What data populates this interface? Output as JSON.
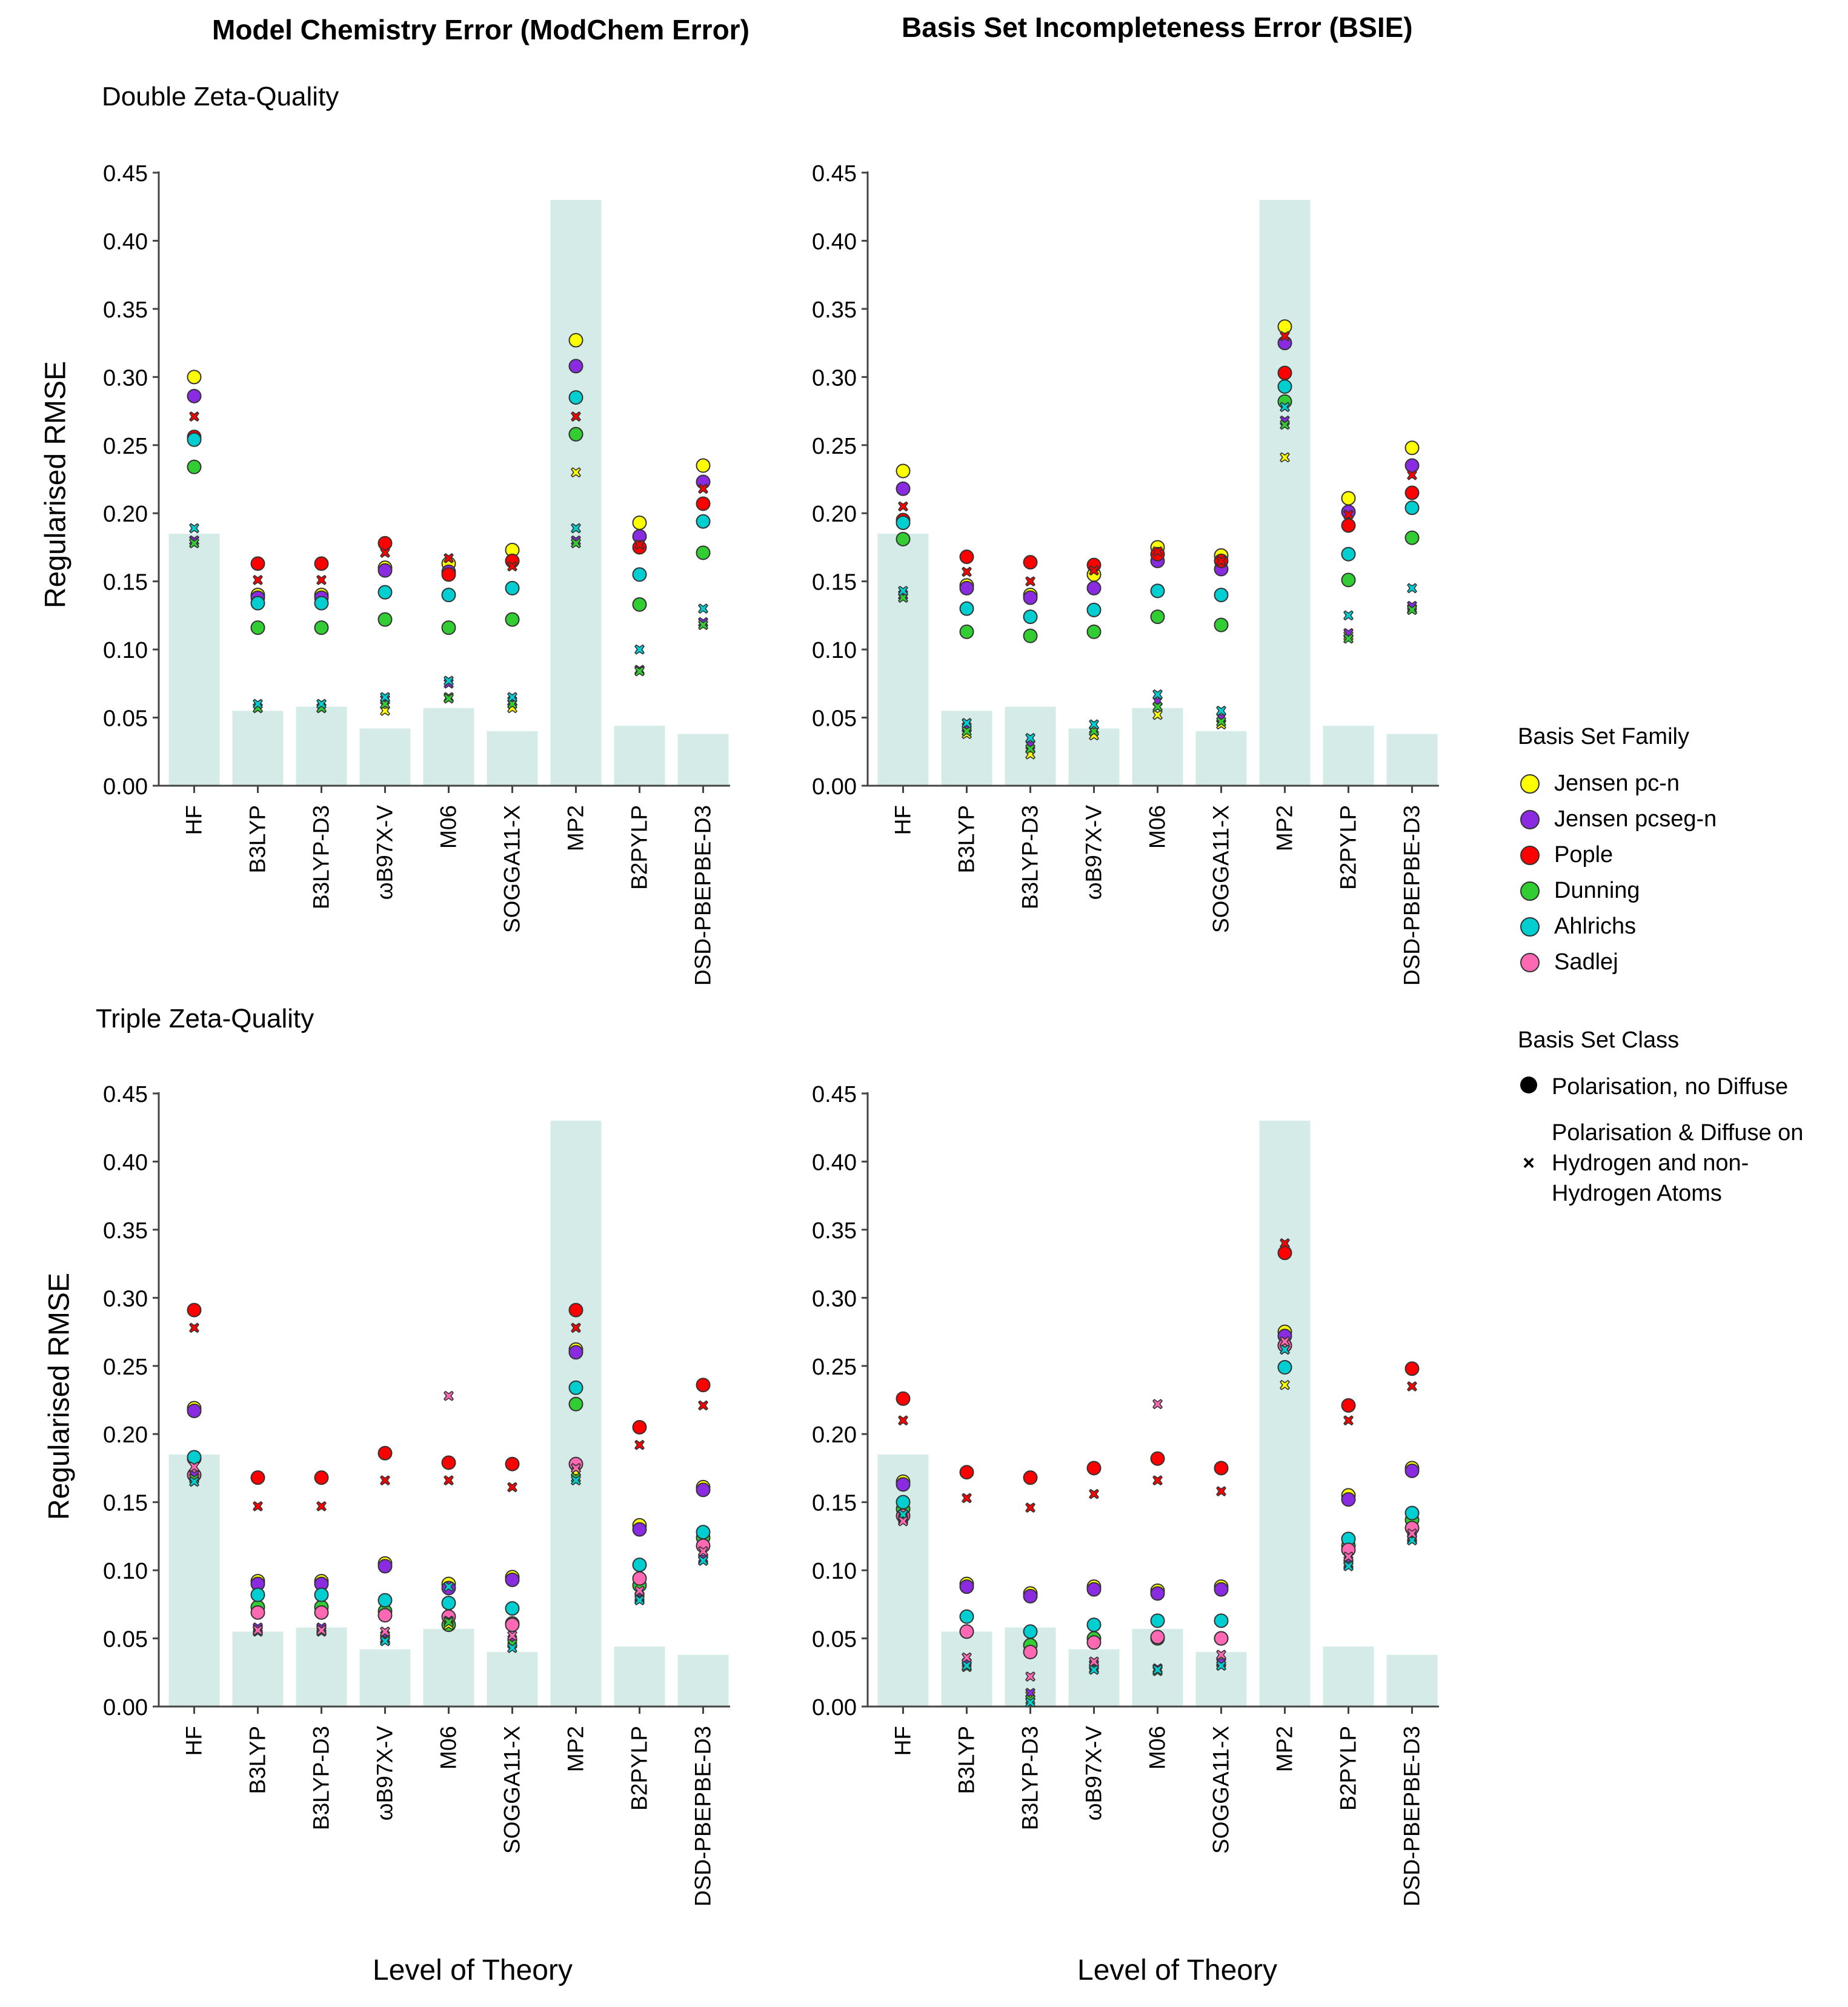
{
  "titles": {
    "modchem": "Model Chemistry Error (ModChem Error)",
    "bsie": "Basis Set Incompleteness Error (BSIE)",
    "double_zeta": "Double Zeta-Quality",
    "triple_zeta": "Triple Zeta-Quality",
    "y_axis": "Regularised RMSE",
    "x_axis": "Level of Theory"
  },
  "legend": {
    "family_title": "Basis Set Family",
    "families": [
      {
        "label": "Jensen pc-n",
        "key": "jensen_pc",
        "color": "#ffff00"
      },
      {
        "label": "Jensen pcseg-n",
        "key": "jensen_pcseg",
        "color": "#8a2be2"
      },
      {
        "label": "Pople",
        "key": "pople",
        "color": "#ff0000"
      },
      {
        "label": "Dunning",
        "key": "dunning",
        "color": "#32cd32"
      },
      {
        "label": "Ahlrichs",
        "key": "ahlrichs",
        "color": "#00ced1"
      },
      {
        "label": "Sadlej",
        "key": "sadlej",
        "color": "#ff69b4"
      }
    ],
    "class_title": "Basis Set Class",
    "classes": [
      {
        "label": "Polarisation, no Diffuse",
        "marker": "circle"
      },
      {
        "label": "Polarisation & Diffuse on Hydrogen and non-Hydrogen Atoms",
        "marker": "×"
      }
    ]
  },
  "chart_data": [
    {
      "type": "scatter",
      "title": "Model Chemistry Error (ModChem Error) - Double Zeta-Quality",
      "xlabel": "",
      "ylabel": "Regularised RMSE",
      "ylim": [
        0,
        0.45
      ],
      "categories": [
        "HF",
        "B3LYP",
        "B3LYP-D3",
        "ωB97X-V",
        "M06",
        "SOGGA11-X",
        "MP2",
        "B2PYLP",
        "DSD-PBEPBE-D3"
      ],
      "yticks": [
        "0.00",
        "0.05",
        "0.10",
        "0.15",
        "0.20",
        "0.25",
        "0.30",
        "0.35",
        "0.40",
        "0.45"
      ],
      "bars": [
        0.185,
        0.055,
        0.058,
        0.042,
        0.057,
        0.04,
        0.43,
        0.044,
        0.038
      ],
      "series": [
        {
          "name": "Jensen pc-n",
          "marker": "circle",
          "values": [
            0.3,
            0.14,
            0.14,
            0.16,
            0.163,
            0.173,
            0.327,
            0.193,
            0.235
          ]
        },
        {
          "name": "Jensen pcseg-n",
          "marker": "circle",
          "values": [
            0.286,
            0.138,
            0.138,
            0.158,
            0.157,
            0.165,
            0.308,
            0.183,
            0.223
          ]
        },
        {
          "name": "Pople",
          "marker": "circle",
          "values": [
            0.256,
            0.163,
            0.163,
            0.178,
            0.155,
            0.165,
            0.258,
            0.175,
            0.207
          ]
        },
        {
          "name": "Dunning",
          "marker": "circle",
          "values": [
            0.234,
            0.116,
            0.116,
            0.122,
            0.116,
            0.122,
            0.258,
            0.133,
            0.171
          ]
        },
        {
          "name": "Ahlrichs",
          "marker": "circle",
          "values": [
            0.254,
            0.134,
            0.134,
            0.142,
            0.14,
            0.145,
            0.285,
            0.155,
            0.194
          ]
        },
        {
          "name": "Jensen pc-n",
          "marker": "x",
          "values": [
            0.18,
            0.057,
            0.057,
            0.055,
            0.065,
            0.057,
            0.23,
            0.085,
            0.12
          ]
        },
        {
          "name": "Jensen pcseg-n",
          "marker": "x",
          "values": [
            0.18,
            0.057,
            0.057,
            0.063,
            0.075,
            0.062,
            0.18,
            0.085,
            0.12
          ]
        },
        {
          "name": "Pople",
          "marker": "x",
          "values": [
            0.271,
            0.151,
            0.151,
            0.171,
            0.167,
            0.161,
            0.271,
            0.177,
            0.218
          ]
        },
        {
          "name": "Dunning",
          "marker": "x",
          "values": [
            0.178,
            0.057,
            0.057,
            0.06,
            0.064,
            0.06,
            0.178,
            0.084,
            0.118
          ]
        },
        {
          "name": "Ahlrichs",
          "marker": "x",
          "values": [
            0.189,
            0.06,
            0.06,
            0.065,
            0.077,
            0.065,
            0.189,
            0.1,
            0.13
          ]
        }
      ]
    },
    {
      "type": "scatter",
      "title": "Basis Set Incompleteness Error (BSIE) - Double Zeta-Quality",
      "xlabel": "",
      "ylabel": "",
      "ylim": [
        0,
        0.45
      ],
      "categories": [
        "HF",
        "B3LYP",
        "B3LYP-D3",
        "ωB97X-V",
        "M06",
        "SOGGA11-X",
        "MP2",
        "B2PYLP",
        "DSD-PBEPBE-D3"
      ],
      "yticks": [
        "0.00",
        "0.05",
        "0.10",
        "0.15",
        "0.20",
        "0.25",
        "0.30",
        "0.35",
        "0.40",
        "0.45"
      ],
      "bars": [
        0.185,
        0.055,
        0.058,
        0.042,
        0.057,
        0.04,
        0.43,
        0.044,
        0.038
      ],
      "series": [
        {
          "name": "Jensen pc-n",
          "marker": "circle",
          "values": [
            0.231,
            0.147,
            0.14,
            0.155,
            0.175,
            0.169,
            0.337,
            0.211,
            0.248
          ]
        },
        {
          "name": "Jensen pcseg-n",
          "marker": "circle",
          "values": [
            0.218,
            0.145,
            0.138,
            0.145,
            0.165,
            0.159,
            0.325,
            0.201,
            0.235
          ]
        },
        {
          "name": "Pople",
          "marker": "circle",
          "values": [
            0.195,
            0.168,
            0.164,
            0.162,
            0.17,
            0.165,
            0.303,
            0.191,
            0.215
          ]
        },
        {
          "name": "Dunning",
          "marker": "circle",
          "values": [
            0.181,
            0.113,
            0.11,
            0.113,
            0.124,
            0.118,
            0.282,
            0.151,
            0.182
          ]
        },
        {
          "name": "Ahlrichs",
          "marker": "circle",
          "values": [
            0.193,
            0.13,
            0.124,
            0.129,
            0.143,
            0.14,
            0.293,
            0.17,
            0.204
          ]
        },
        {
          "name": "Jensen pc-n",
          "marker": "x",
          "values": [
            0.14,
            0.038,
            0.023,
            0.037,
            0.052,
            0.045,
            0.241,
            0.11,
            0.13
          ]
        },
        {
          "name": "Jensen pcseg-n",
          "marker": "x",
          "values": [
            0.14,
            0.043,
            0.03,
            0.04,
            0.062,
            0.05,
            0.268,
            0.112,
            0.132
          ]
        },
        {
          "name": "Pople",
          "marker": "x",
          "values": [
            0.205,
            0.157,
            0.15,
            0.158,
            0.172,
            0.165,
            0.33,
            0.199,
            0.228
          ]
        },
        {
          "name": "Dunning",
          "marker": "x",
          "values": [
            0.138,
            0.04,
            0.027,
            0.04,
            0.058,
            0.047,
            0.265,
            0.108,
            0.129
          ]
        },
        {
          "name": "Ahlrichs",
          "marker": "x",
          "values": [
            0.143,
            0.046,
            0.035,
            0.045,
            0.067,
            0.055,
            0.278,
            0.125,
            0.145
          ]
        }
      ]
    },
    {
      "type": "scatter",
      "title": "Model Chemistry Error (ModChem Error) - Triple Zeta-Quality",
      "xlabel": "Level of Theory",
      "ylabel": "Regularised RMSE",
      "ylim": [
        0,
        0.45
      ],
      "categories": [
        "HF",
        "B3LYP",
        "B3LYP-D3",
        "ωB97X-V",
        "M06",
        "SOGGA11-X",
        "MP2",
        "B2PYLP",
        "DSD-PBEPBE-D3"
      ],
      "yticks": [
        "0.00",
        "0.05",
        "0.10",
        "0.15",
        "0.20",
        "0.25",
        "0.30",
        "0.35",
        "0.40",
        "0.45"
      ],
      "bars": [
        0.185,
        0.055,
        0.058,
        0.042,
        0.057,
        0.04,
        0.43,
        0.044,
        0.038
      ],
      "series": [
        {
          "name": "Jensen pc-n",
          "marker": "circle",
          "values": [
            0.219,
            0.092,
            0.092,
            0.105,
            0.09,
            0.095,
            0.262,
            0.133,
            0.161
          ]
        },
        {
          "name": "Jensen pcseg-n",
          "marker": "circle",
          "values": [
            0.217,
            0.09,
            0.09,
            0.103,
            0.087,
            0.093,
            0.26,
            0.13,
            0.159
          ]
        },
        {
          "name": "Pople",
          "marker": "circle",
          "values": [
            0.291,
            0.168,
            0.168,
            0.186,
            0.179,
            0.178,
            0.291,
            0.205,
            0.236
          ]
        },
        {
          "name": "Dunning",
          "marker": "circle",
          "values": [
            0.182,
            0.073,
            0.073,
            0.07,
            0.06,
            0.061,
            0.222,
            0.089,
            0.124
          ]
        },
        {
          "name": "Ahlrichs",
          "marker": "circle",
          "values": [
            0.183,
            0.082,
            0.082,
            0.078,
            0.076,
            0.072,
            0.234,
            0.104,
            0.128
          ]
        },
        {
          "name": "Sadlej",
          "marker": "circle",
          "values": [
            0.17,
            0.069,
            0.069,
            0.067,
            0.066,
            0.06,
            0.178,
            0.094,
            0.118
          ]
        },
        {
          "name": "Jensen pc-n",
          "marker": "x",
          "values": [
            0.168,
            0.057,
            0.057,
            0.05,
            0.06,
            0.047,
            0.172,
            0.08,
            0.108
          ]
        },
        {
          "name": "Jensen pcseg-n",
          "marker": "x",
          "values": [
            0.17,
            0.058,
            0.058,
            0.052,
            0.063,
            0.049,
            0.175,
            0.081,
            0.109
          ]
        },
        {
          "name": "Pople",
          "marker": "x",
          "values": [
            0.278,
            0.147,
            0.147,
            0.166,
            0.166,
            0.161,
            0.278,
            0.192,
            0.221
          ]
        },
        {
          "name": "Dunning",
          "marker": "x",
          "values": [
            0.167,
            0.056,
            0.056,
            0.049,
            0.062,
            0.046,
            0.168,
            0.079,
            0.107
          ]
        },
        {
          "name": "Ahlrichs",
          "marker": "x",
          "values": [
            0.165,
            0.055,
            0.055,
            0.048,
            0.088,
            0.043,
            0.166,
            0.078,
            0.107
          ]
        },
        {
          "name": "Sadlej",
          "marker": "x",
          "values": [
            0.176,
            0.056,
            0.056,
            0.055,
            0.228,
            0.052,
            0.175,
            0.085,
            0.114
          ]
        }
      ]
    },
    {
      "type": "scatter",
      "title": "Basis Set Incompleteness Error (BSIE) - Triple Zeta-Quality",
      "xlabel": "Level of Theory",
      "ylabel": "",
      "ylim": [
        0,
        0.45
      ],
      "categories": [
        "HF",
        "B3LYP",
        "B3LYP-D3",
        "ωB97X-V",
        "M06",
        "SOGGA11-X",
        "MP2",
        "B2PYLP",
        "DSD-PBEPBE-D3"
      ],
      "yticks": [
        "0.00",
        "0.05",
        "0.10",
        "0.15",
        "0.20",
        "0.25",
        "0.30",
        "0.35",
        "0.40",
        "0.45"
      ],
      "bars": [
        0.185,
        0.055,
        0.058,
        0.042,
        0.057,
        0.04,
        0.43,
        0.044,
        0.038
      ],
      "series": [
        {
          "name": "Jensen pc-n",
          "marker": "circle",
          "values": [
            0.165,
            0.09,
            0.083,
            0.088,
            0.085,
            0.088,
            0.275,
            0.155,
            0.175
          ]
        },
        {
          "name": "Jensen pcseg-n",
          "marker": "circle",
          "values": [
            0.163,
            0.088,
            0.081,
            0.086,
            0.083,
            0.086,
            0.272,
            0.152,
            0.173
          ]
        },
        {
          "name": "Pople",
          "marker": "circle",
          "values": [
            0.226,
            0.172,
            0.168,
            0.175,
            0.182,
            0.175,
            0.333,
            0.221,
            0.248
          ]
        },
        {
          "name": "Dunning",
          "marker": "circle",
          "values": [
            0.145,
            0.055,
            0.045,
            0.05,
            0.05,
            0.05,
            0.265,
            0.118,
            0.137
          ]
        },
        {
          "name": "Ahlrichs",
          "marker": "circle",
          "values": [
            0.15,
            0.066,
            0.055,
            0.06,
            0.063,
            0.063,
            0.249,
            0.123,
            0.142
          ]
        },
        {
          "name": "Sadlej",
          "marker": "circle",
          "values": [
            0.14,
            0.055,
            0.04,
            0.047,
            0.051,
            0.05,
            0.265,
            0.115,
            0.131
          ]
        },
        {
          "name": "Jensen pc-n",
          "marker": "x",
          "values": [
            0.138,
            0.03,
            0.008,
            0.03,
            0.027,
            0.032,
            0.236,
            0.105,
            0.124
          ]
        },
        {
          "name": "Jensen pcseg-n",
          "marker": "x",
          "values": [
            0.14,
            0.032,
            0.01,
            0.031,
            0.028,
            0.033,
            0.262,
            0.107,
            0.125
          ]
        },
        {
          "name": "Pople",
          "marker": "x",
          "values": [
            0.21,
            0.153,
            0.146,
            0.156,
            0.166,
            0.158,
            0.34,
            0.21,
            0.235
          ]
        },
        {
          "name": "Dunning",
          "marker": "x",
          "values": [
            0.137,
            0.029,
            0.005,
            0.028,
            0.026,
            0.03,
            0.268,
            0.104,
            0.123
          ]
        },
        {
          "name": "Ahlrichs",
          "marker": "x",
          "values": [
            0.141,
            0.03,
            0.003,
            0.027,
            0.027,
            0.03,
            0.262,
            0.103,
            0.122
          ]
        },
        {
          "name": "Sadlej",
          "marker": "x",
          "values": [
            0.136,
            0.036,
            0.022,
            0.033,
            0.222,
            0.038,
            0.268,
            0.11,
            0.127
          ]
        }
      ]
    }
  ]
}
